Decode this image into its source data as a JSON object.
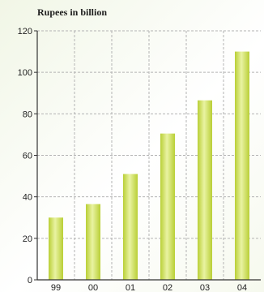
{
  "chart_data": {
    "type": "bar",
    "title": "Rupees in billion",
    "categories": [
      "99",
      "00",
      "01",
      "02",
      "03",
      "04"
    ],
    "values": [
      30,
      36.5,
      51,
      70.5,
      86.5,
      110
    ],
    "y_ticks": [
      "0",
      "20",
      "40",
      "60",
      "80",
      "100",
      "120"
    ],
    "ylim": [
      0,
      120
    ],
    "xlabel": "",
    "ylabel": "",
    "grid": true,
    "colors": {
      "bar_dark": "#b9cf36",
      "bar_light": "#e9f3a2",
      "grid": "#b4b4b4",
      "axis": "#333333",
      "text": "#222222"
    }
  }
}
